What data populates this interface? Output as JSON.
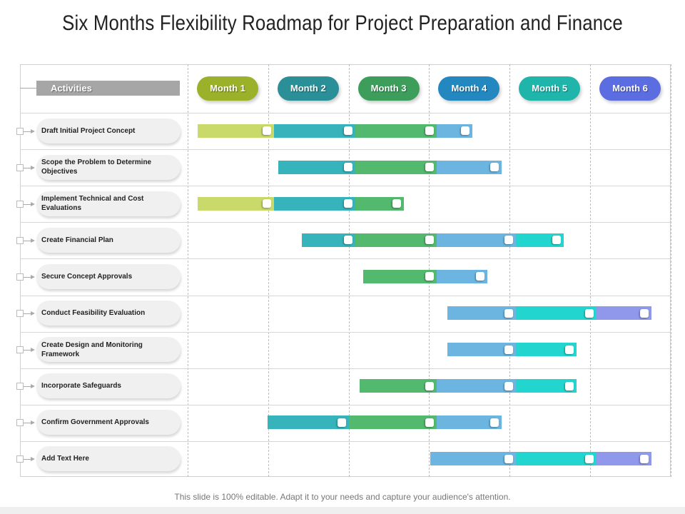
{
  "title": "Six Months Flexibility Roadmap for Project Preparation and Finance",
  "activities_header": "Activities",
  "months": [
    {
      "label": "Month 1",
      "color": "#9cb12a"
    },
    {
      "label": "Month 2",
      "color": "#2b8f97"
    },
    {
      "label": "Month 3",
      "color": "#3d9e5c"
    },
    {
      "label": "Month 4",
      "color": "#2387c0"
    },
    {
      "label": "Month 5",
      "color": "#1fb5ab"
    },
    {
      "label": "Month 6",
      "color": "#5b6de0"
    }
  ],
  "segment_colors": {
    "lime": "#c9d96a",
    "teal": "#36b3bb",
    "green": "#52b96e",
    "blue": "#6bb5e0",
    "cyan": "#22d6cf",
    "purple": "#8f98ea"
  },
  "rows": [
    {
      "label": "Draft Initial Project Concept",
      "segments": [
        [
          "lime",
          0.12,
          1.07
        ],
        [
          "teal",
          1.07,
          2.08
        ],
        [
          "green",
          2.08,
          3.09
        ],
        [
          "blue",
          3.09,
          3.54
        ]
      ]
    },
    {
      "label": "Scope the Problem to Determine Objectives",
      "segments": [
        [
          "teal",
          1.13,
          2.08
        ],
        [
          "green",
          2.08,
          3.09
        ],
        [
          "blue",
          3.09,
          3.9
        ]
      ]
    },
    {
      "label": "Implement Technical and Cost Evaluations",
      "segments": [
        [
          "lime",
          0.12,
          1.07
        ],
        [
          "teal",
          1.07,
          2.08
        ],
        [
          "green",
          2.08,
          2.69
        ]
      ]
    },
    {
      "label": "Create Financial Plan",
      "segments": [
        [
          "teal",
          1.42,
          2.08
        ],
        [
          "green",
          2.08,
          3.09
        ],
        [
          "blue",
          3.09,
          4.08
        ],
        [
          "cyan",
          4.08,
          4.67
        ]
      ]
    },
    {
      "label": "Secure Concept Approvals",
      "segments": [
        [
          "green",
          2.18,
          3.09
        ],
        [
          "blue",
          3.09,
          3.72
        ]
      ]
    },
    {
      "label": "Conduct Feasibility Evaluation",
      "segments": [
        [
          "blue",
          3.23,
          4.08
        ],
        [
          "cyan",
          4.08,
          5.08
        ],
        [
          "purple",
          5.08,
          5.76
        ]
      ]
    },
    {
      "label": "Create Design and Monitoring Framework",
      "segments": [
        [
          "blue",
          3.23,
          4.08
        ],
        [
          "cyan",
          4.08,
          4.83
        ]
      ]
    },
    {
      "label": "Incorporate Safeguards",
      "segments": [
        [
          "green",
          2.14,
          3.09
        ],
        [
          "blue",
          3.09,
          4.08
        ],
        [
          "cyan",
          4.08,
          4.83
        ]
      ]
    },
    {
      "label": "Confirm Government Approvals",
      "segments": [
        [
          "teal",
          0.99,
          2.0
        ],
        [
          "green",
          2.0,
          3.09
        ],
        [
          "blue",
          3.09,
          3.9
        ]
      ]
    },
    {
      "label": "Add Text Here",
      "segments": [
        [
          "blue",
          3.01,
          4.08
        ],
        [
          "cyan",
          4.08,
          5.08
        ],
        [
          "purple",
          5.08,
          5.76
        ]
      ]
    }
  ],
  "footer": "This slide is 100% editable. Adapt it to your needs and capture your audience's attention."
}
